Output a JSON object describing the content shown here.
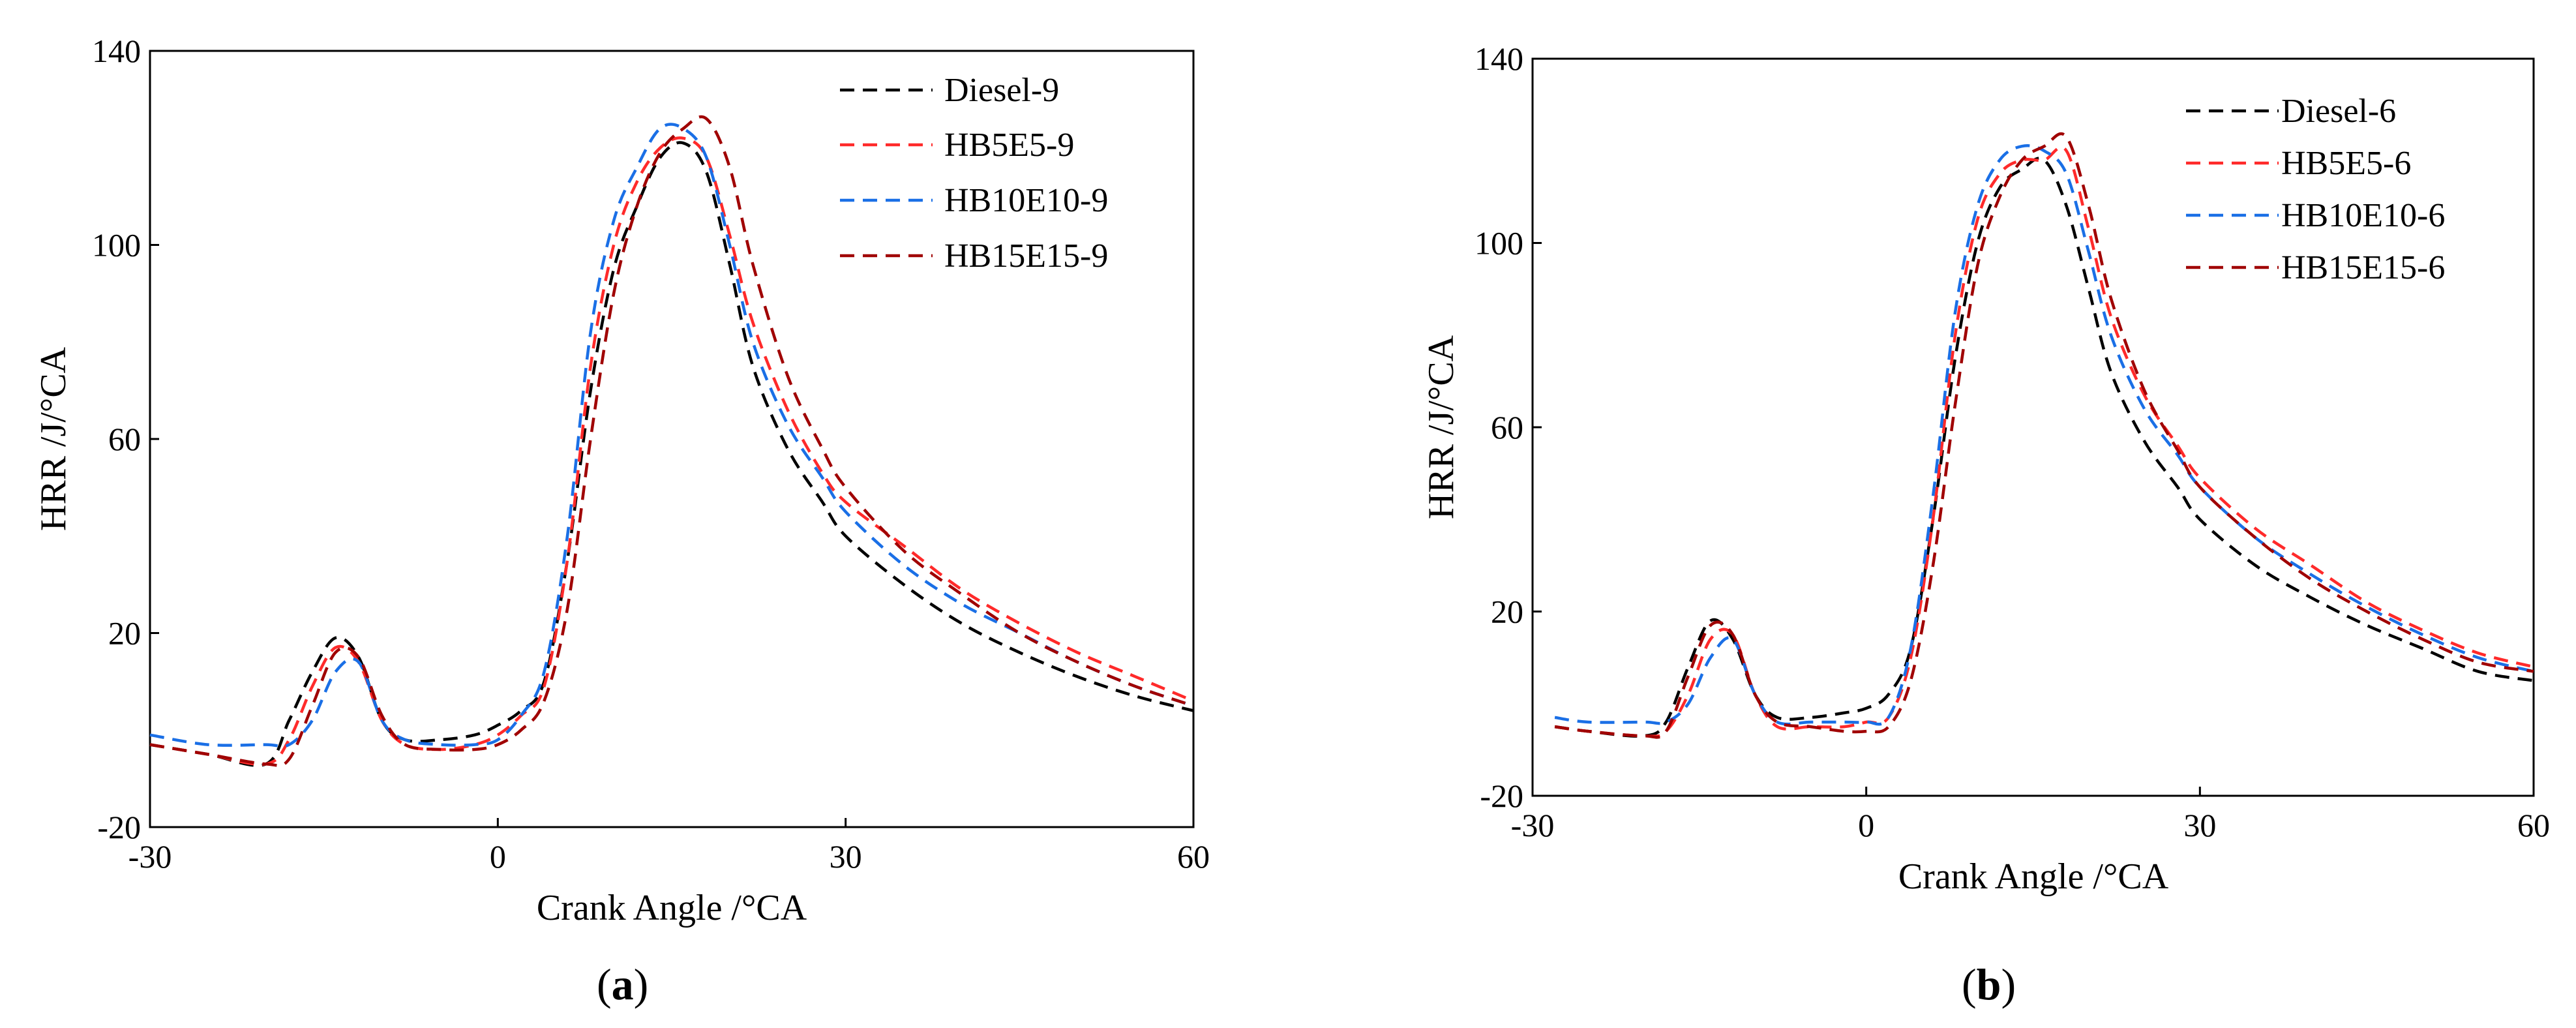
{
  "chart_data": [
    {
      "type": "line",
      "panel_label": "a",
      "title": "",
      "xlabel": "Crank Angle /°CA",
      "ylabel": "HRR /J/°CA",
      "xlim": [
        -30,
        60
      ],
      "ylim": [
        -20,
        140
      ],
      "xticks": [
        -30,
        0,
        30,
        60
      ],
      "yticks": [
        -20,
        20,
        60,
        100,
        140
      ],
      "legend_position": "top-right",
      "series": [
        {
          "name": "Diesel-9",
          "color": "#000000",
          "x": [
            -30,
            -25,
            -20,
            -18,
            -16,
            -14,
            -12,
            -10,
            -8,
            -5,
            -2,
            0,
            2,
            4,
            6,
            8,
            10,
            12,
            14,
            16,
            18,
            20,
            22,
            25,
            28,
            30,
            35,
            40,
            45,
            50,
            55,
            60
          ],
          "y": [
            -3,
            -5,
            -7,
            2,
            12,
            19,
            15,
            2,
            -2,
            -2,
            -1,
            1,
            4,
            10,
            35,
            70,
            95,
            108,
            118,
            121,
            115,
            96,
            75,
            58,
            47,
            40,
            30,
            22,
            16,
            11,
            7,
            4
          ]
        },
        {
          "name": "HB5E5-9",
          "color": "#ff2a2a",
          "x": [
            -30,
            -25,
            -20,
            -18,
            -16,
            -14,
            -12,
            -10,
            -8,
            -5,
            -2,
            0,
            2,
            4,
            6,
            8,
            10,
            12,
            14,
            16,
            18,
            20,
            22,
            25,
            28,
            30,
            35,
            40,
            45,
            50,
            55,
            60
          ],
          "y": [
            -3,
            -5,
            -7,
            -2,
            9,
            17,
            14,
            2,
            -3,
            -4,
            -3,
            -1,
            3,
            9,
            35,
            75,
            100,
            113,
            120,
            122,
            118,
            102,
            84,
            66,
            53,
            47,
            38,
            29,
            22,
            16,
            11,
            6
          ]
        },
        {
          "name": "HB10E10-9",
          "color": "#1a6fe6",
          "x": [
            -30,
            -25,
            -20,
            -18,
            -16,
            -14,
            -12,
            -10,
            -8,
            -5,
            -2,
            0,
            2,
            4,
            6,
            8,
            10,
            12,
            14,
            16,
            18,
            20,
            22,
            25,
            28,
            30,
            35,
            40,
            45,
            50,
            55,
            60
          ],
          "y": [
            -1,
            -3,
            -3,
            -3,
            2,
            12,
            14,
            2,
            -2,
            -3,
            -3,
            -2,
            3,
            12,
            40,
            82,
            105,
            116,
            124,
            124,
            118,
            100,
            80,
            63,
            52,
            45,
            34,
            26,
            20,
            14,
            9,
            5
          ]
        },
        {
          "name": "HB15E15-9",
          "color": "#a00000",
          "x": [
            -30,
            -25,
            -20,
            -18,
            -16,
            -14,
            -12,
            -10,
            -8,
            -5,
            -2,
            0,
            2,
            4,
            6,
            8,
            10,
            12,
            14,
            16,
            18,
            20,
            22,
            25,
            28,
            30,
            35,
            40,
            45,
            50,
            55,
            60
          ],
          "y": [
            -3,
            -5,
            -7,
            -6,
            5,
            16,
            15,
            3,
            -3,
            -4,
            -4,
            -3,
            0,
            6,
            25,
            60,
            90,
            108,
            119,
            124,
            126,
            116,
            96,
            73,
            58,
            50,
            37,
            28,
            20,
            14,
            9,
            5
          ]
        }
      ]
    },
    {
      "type": "line",
      "panel_label": "b",
      "title": "",
      "xlabel": "Crank Angle /°CA",
      "ylabel": "HRR /J/°CA",
      "xlim": [
        -30,
        60
      ],
      "ylim": [
        -20,
        140
      ],
      "xticks": [
        -30,
        0,
        30,
        60
      ],
      "yticks": [
        -20,
        20,
        60,
        100,
        140
      ],
      "legend_position": "top-right",
      "series": [
        {
          "name": "Diesel-6",
          "color": "#000000",
          "x": [
            -28,
            -25,
            -20,
            -18,
            -16,
            -14,
            -12,
            -10,
            -8,
            -5,
            -2,
            0,
            2,
            4,
            6,
            8,
            10,
            12,
            14,
            16,
            18,
            20,
            22,
            25,
            28,
            30,
            35,
            40,
            45,
            50,
            55,
            60
          ],
          "y": [
            -5,
            -6,
            -7,
            -4,
            8,
            18,
            14,
            2,
            -3,
            -3,
            -2,
            -1,
            2,
            12,
            40,
            75,
            100,
            112,
            116,
            118,
            108,
            90,
            72,
            57,
            47,
            40,
            30,
            23,
            17,
            12,
            7,
            5
          ]
        },
        {
          "name": "HB5E5-6",
          "color": "#ff2a2a",
          "x": [
            -28,
            -25,
            -20,
            -18,
            -16,
            -14,
            -12,
            -10,
            -8,
            -5,
            -2,
            0,
            2,
            4,
            6,
            8,
            10,
            12,
            14,
            16,
            18,
            20,
            22,
            25,
            28,
            30,
            35,
            40,
            45,
            50,
            55,
            60
          ],
          "y": [
            -5,
            -6,
            -7,
            -6,
            2,
            14,
            15,
            2,
            -5,
            -5,
            -5,
            -4,
            -3,
            10,
            40,
            80,
            105,
            115,
            118,
            118,
            120,
            103,
            84,
            67,
            56,
            49,
            38,
            30,
            22,
            16,
            11,
            8
          ]
        },
        {
          "name": "HB10E10-6",
          "color": "#1a6fe6",
          "x": [
            -28,
            -25,
            -20,
            -18,
            -16,
            -14,
            -12,
            -10,
            -8,
            -5,
            -2,
            0,
            2,
            4,
            6,
            8,
            10,
            12,
            14,
            16,
            18,
            20,
            22,
            25,
            28,
            30,
            35,
            40,
            45,
            50,
            55,
            60
          ],
          "y": [
            -3,
            -4,
            -4,
            -4,
            0,
            10,
            14,
            2,
            -4,
            -4,
            -4,
            -4,
            -3,
            12,
            45,
            85,
            108,
            118,
            121,
            120,
            115,
            98,
            80,
            64,
            54,
            47,
            36,
            28,
            21,
            15,
            10,
            7
          ]
        },
        {
          "name": "HB15E15-6",
          "color": "#a00000",
          "x": [
            -28,
            -25,
            -20,
            -18,
            -16,
            -14,
            -12,
            -10,
            -8,
            -5,
            -2,
            0,
            2,
            4,
            6,
            8,
            10,
            12,
            14,
            16,
            18,
            20,
            22,
            25,
            28,
            30,
            35,
            40,
            45,
            50,
            55,
            60
          ],
          "y": [
            -5,
            -6,
            -7,
            -6,
            6,
            17,
            15,
            2,
            -4,
            -5,
            -6,
            -6,
            -5,
            5,
            30,
            65,
            95,
            110,
            118,
            121,
            123,
            108,
            88,
            68,
            55,
            47,
            36,
            27,
            20,
            14,
            9,
            7
          ]
        }
      ]
    }
  ]
}
